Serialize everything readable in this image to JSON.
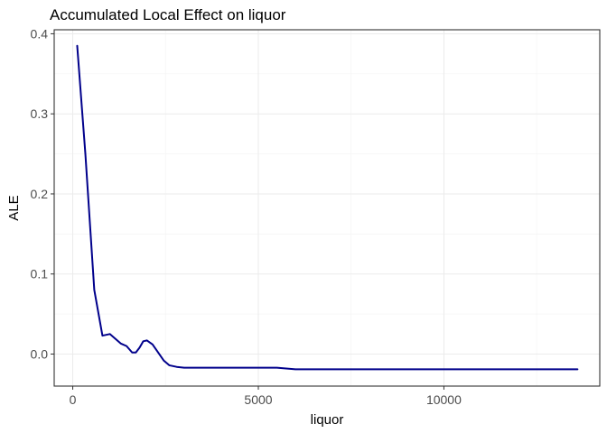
{
  "chart_data": {
    "type": "line",
    "title": "Accumulated Local Effect on liquor",
    "xlabel": "liquor",
    "ylabel": "ALE",
    "xlim": [
      -500,
      14200
    ],
    "ylim": [
      -0.04,
      0.405
    ],
    "x_ticks": [
      0,
      5000,
      10000
    ],
    "x_tick_labels": [
      "0",
      "5000",
      "10000"
    ],
    "y_ticks": [
      0.0,
      0.1,
      0.2,
      0.3,
      0.4
    ],
    "y_tick_labels": [
      "0.0",
      "0.1",
      "0.2",
      "0.3",
      "0.4"
    ],
    "grid": true,
    "series": [
      {
        "color": "#00008b",
        "x": [
          120,
          340,
          580,
          800,
          1000,
          1150,
          1300,
          1450,
          1600,
          1700,
          1800,
          1900,
          2000,
          2150,
          2300,
          2450,
          2600,
          2800,
          3000,
          4000,
          5000,
          5500,
          6000,
          7000,
          8000,
          9000,
          10000,
          11000,
          12000,
          13000,
          13600
        ],
        "y": [
          0.385,
          0.25,
          0.08,
          0.023,
          0.025,
          0.019,
          0.013,
          0.01,
          0.002,
          0.002,
          0.008,
          0.016,
          0.017,
          0.012,
          0.002,
          -0.008,
          -0.014,
          -0.016,
          -0.017,
          -0.017,
          -0.017,
          -0.017,
          -0.019,
          -0.019,
          -0.019,
          -0.019,
          -0.019,
          -0.019,
          -0.019,
          -0.019,
          -0.019
        ]
      }
    ]
  }
}
